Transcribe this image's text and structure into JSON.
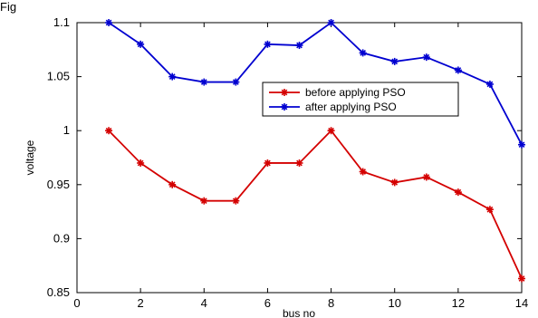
{
  "figure_caption": "Fig",
  "chart_data": {
    "type": "line",
    "title": "",
    "xlabel": "bus no",
    "ylabel": "voltage",
    "xlim": [
      0,
      14
    ],
    "ylim": [
      0.85,
      1.1
    ],
    "x_ticks": [
      0,
      2,
      4,
      6,
      8,
      10,
      12,
      14
    ],
    "y_ticks": [
      0.85,
      0.9,
      0.95,
      1,
      1.05,
      1.1
    ],
    "x_tick_labels": [
      "0",
      "2",
      "4",
      "6",
      "8",
      "10",
      "12",
      "14"
    ],
    "y_tick_labels": [
      "0.85",
      "0.9",
      "0.95",
      "1",
      "1.05",
      "1.1"
    ],
    "grid": false,
    "legend_position": "upper-right",
    "x": [
      1,
      2,
      3,
      4,
      5,
      6,
      7,
      8,
      9,
      10,
      11,
      12,
      13,
      14
    ],
    "series": [
      {
        "name": "before applying PSO",
        "color": "#d40000",
        "marker": "star",
        "values": [
          1.0,
          0.97,
          0.95,
          0.935,
          0.935,
          0.97,
          0.97,
          1.0,
          0.962,
          0.952,
          0.957,
          0.943,
          0.927,
          0.863
        ]
      },
      {
        "name": "after applying PSO",
        "color": "#0000d0",
        "marker": "star",
        "values": [
          1.1,
          1.08,
          1.05,
          1.045,
          1.045,
          1.08,
          1.079,
          1.1,
          1.072,
          1.064,
          1.068,
          1.056,
          1.043,
          0.987
        ]
      }
    ]
  },
  "colors": {
    "page_background": "#ffffff",
    "axes_background": "#ffffff",
    "axis_color": "#000000"
  }
}
